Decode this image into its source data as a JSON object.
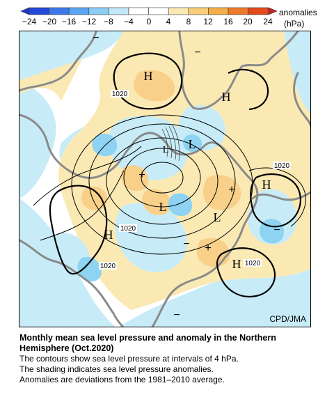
{
  "colorbar": {
    "tick_labels": [
      "−24",
      "−20",
      "−16",
      "−12",
      "−8",
      "−4",
      "0",
      "4",
      "8",
      "12",
      "16",
      "20",
      "24"
    ],
    "units_label_1": "anomalies",
    "units_label_2": "(hPa)",
    "colors": [
      "#2448d8",
      "#3c78ea",
      "#5aa5f2",
      "#8ccdf6",
      "#c2e8f8",
      "#ffffff",
      "#ffffff",
      "#fbe9b4",
      "#f8cf78",
      "#f4ae4a",
      "#ee7a2a",
      "#e34a1c"
    ]
  },
  "map": {
    "pressure_labels": {
      "highs": [
        "H",
        "H",
        "H",
        "H",
        "H"
      ],
      "lows": [
        "L",
        "L",
        "L",
        "L"
      ],
      "isobar_labels": [
        "1020",
        "1020",
        "1020",
        "1020"
      ],
      "plus": [
        "+",
        "+",
        "+"
      ],
      "minus": [
        "−",
        "−",
        "−",
        "−",
        "−"
      ]
    },
    "credit": "CPD/JMA"
  },
  "caption": {
    "title_line1": "Monthly mean sea level pressure and anomaly in the Northern",
    "title_line2": "Hemisphere (Oct.2020)",
    "line1": "The contours show sea level pressure at intervals of 4 hPa.",
    "line2": "The shading indicates sea level pressure anomalies.",
    "line3": "Anomalies are deviations from the 1981–2010 average."
  }
}
